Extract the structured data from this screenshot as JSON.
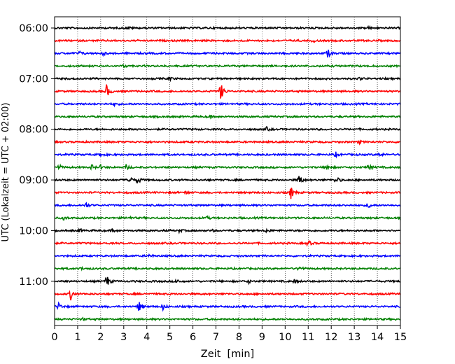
{
  "chart_data": {
    "type": "line",
    "xlabel": "Zeit  [min]",
    "ylabel": "UTC (Lokalzeit = UTC + 02:00)",
    "xlim": [
      0,
      15
    ],
    "x_ticks": [
      0,
      1,
      2,
      3,
      4,
      5,
      6,
      7,
      8,
      9,
      10,
      11,
      12,
      13,
      14,
      15
    ],
    "x_tick_labels": [
      "0",
      "1",
      "2",
      "3",
      "4",
      "5",
      "6",
      "7",
      "8",
      "9",
      "10",
      "11",
      "12",
      "13",
      "14",
      "15"
    ],
    "y_tick_labels": [
      "06:00",
      "07:00",
      "08:00",
      "09:00",
      "10:00",
      "11:00"
    ],
    "y_tick_rows": [
      0,
      4,
      8,
      12,
      16,
      20
    ],
    "grid": "vertical dotted",
    "line_colors": [
      "#000000",
      "#ff0000",
      "#0000ff",
      "#008000"
    ],
    "trace_interval_min": 15,
    "traces": [
      {
        "start": "06:00",
        "events": [
          [
            3.2,
            0.35
          ],
          [
            13.6,
            0.3
          ]
        ]
      },
      {
        "start": "06:15",
        "events": [
          [
            11.2,
            0.25
          ]
        ]
      },
      {
        "start": "06:30",
        "events": [
          [
            1.1,
            0.4
          ],
          [
            2.1,
            0.35
          ],
          [
            11.85,
            1.0
          ]
        ]
      },
      {
        "start": "06:45",
        "events": [
          [
            3.0,
            0.25
          ]
        ]
      },
      {
        "start": "07:00",
        "events": [
          [
            5.0,
            0.3
          ],
          [
            13.2,
            0.35
          ]
        ]
      },
      {
        "start": "07:15",
        "events": [
          [
            2.25,
            1.6
          ],
          [
            7.2,
            2.2
          ]
        ]
      },
      {
        "start": "07:30",
        "events": [
          [
            2.6,
            0.3
          ]
        ]
      },
      {
        "start": "07:45",
        "events": [
          [
            6.7,
            0.25
          ]
        ]
      },
      {
        "start": "08:00",
        "events": [
          [
            3.6,
            0.35
          ],
          [
            9.2,
            0.4
          ]
        ]
      },
      {
        "start": "08:15",
        "events": [
          [
            13.2,
            0.3
          ]
        ]
      },
      {
        "start": "08:30",
        "events": [
          [
            2.0,
            0.5
          ],
          [
            12.2,
            0.5
          ],
          [
            14.1,
            0.45
          ]
        ]
      },
      {
        "start": "08:45",
        "events": [
          [
            0.2,
            0.5
          ],
          [
            1.6,
            0.55
          ],
          [
            2.0,
            0.45
          ],
          [
            3.1,
            0.6
          ],
          [
            11.8,
            0.8
          ],
          [
            13.6,
            0.6
          ]
        ]
      },
      {
        "start": "09:00",
        "events": [
          [
            3.2,
            1.2
          ],
          [
            3.6,
            0.9
          ],
          [
            10.6,
            1.3
          ],
          [
            12.2,
            0.9
          ]
        ]
      },
      {
        "start": "09:15",
        "events": [
          [
            5.7,
            0.3
          ],
          [
            10.25,
            1.5
          ]
        ]
      },
      {
        "start": "09:30",
        "events": [
          [
            1.35,
            0.7
          ],
          [
            13.6,
            0.7
          ]
        ]
      },
      {
        "start": "09:45",
        "events": [
          [
            0.4,
            0.4
          ],
          [
            3.2,
            0.35
          ],
          [
            6.6,
            0.35
          ]
        ]
      },
      {
        "start": "10:00",
        "events": [
          [
            1.1,
            0.35
          ],
          [
            2.5,
            0.3
          ],
          [
            5.4,
            0.3
          ],
          [
            6.8,
            0.3
          ],
          [
            9.2,
            0.4
          ]
        ]
      },
      {
        "start": "10:15",
        "events": [
          [
            11.0,
            0.7
          ]
        ]
      },
      {
        "start": "10:30",
        "events": [
          [
            4.1,
            0.3
          ]
        ]
      },
      {
        "start": "10:45",
        "events": [
          [
            1.1,
            0.3
          ],
          [
            10.6,
            0.6
          ]
        ]
      },
      {
        "start": "11:00",
        "events": [
          [
            2.25,
            1.6
          ],
          [
            5.3,
            0.5
          ],
          [
            8.4,
            0.4
          ],
          [
            10.4,
            0.4
          ]
        ]
      },
      {
        "start": "11:15",
        "events": [
          [
            0.7,
            1.3
          ]
        ]
      },
      {
        "start": "11:30",
        "events": [
          [
            0.15,
            1.0
          ],
          [
            3.65,
            1.3
          ],
          [
            4.7,
            0.7
          ]
        ]
      },
      {
        "start": "11:45",
        "events": [
          [
            1.2,
            0.3
          ]
        ]
      }
    ]
  }
}
